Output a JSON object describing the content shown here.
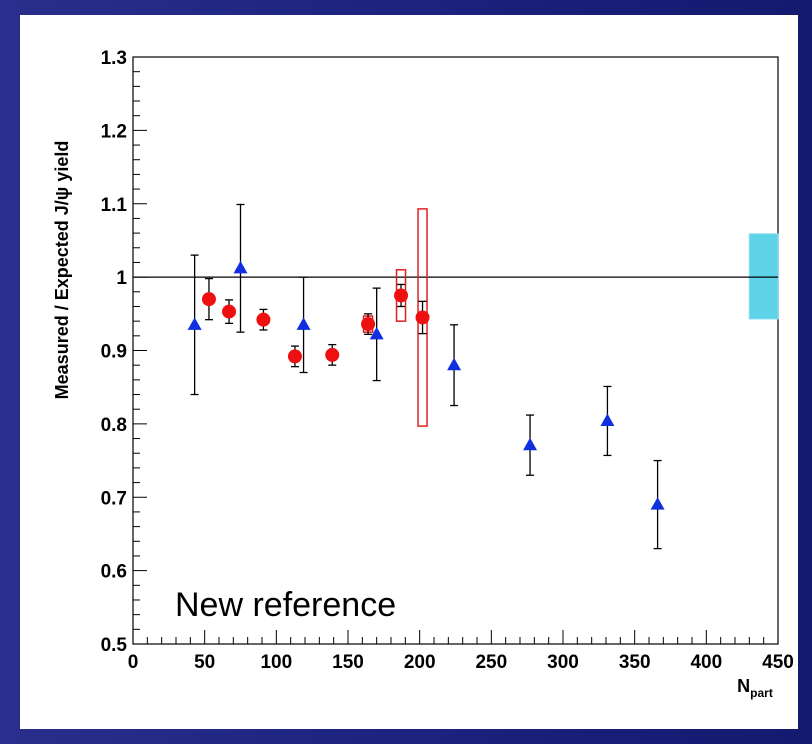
{
  "chart_data": {
    "type": "scatter",
    "title": "",
    "xlabel_main": "N",
    "xlabel_sub": "part",
    "ylabel": "Measured / Expected J/ψ yield",
    "xlim": [
      0,
      450
    ],
    "ylim": [
      0.5,
      1.3
    ],
    "x_ticks": [
      "0",
      "50",
      "100",
      "150",
      "200",
      "250",
      "300",
      "350",
      "400",
      "450"
    ],
    "y_ticks": [
      "0.5",
      "0.6",
      "0.7",
      "0.8",
      "0.9",
      "1",
      "1.1",
      "1.2",
      "1.3"
    ],
    "reference_line": 1.0,
    "annotation": "New reference",
    "colors": {
      "triangles": "#1030e0",
      "circles": "#ee1010",
      "syst_box": "#e02020",
      "global_box": "#5fd3e8"
    },
    "series": [
      {
        "marker": "triangle",
        "points": [
          {
            "x": 43,
            "y": 0.935,
            "err": 0.095
          },
          {
            "x": 75,
            "y": 1.012,
            "err": 0.087
          },
          {
            "x": 119,
            "y": 0.935,
            "err": 0.065
          },
          {
            "x": 170,
            "y": 0.922,
            "err": 0.063
          },
          {
            "x": 224,
            "y": 0.88,
            "err": 0.055
          },
          {
            "x": 277,
            "y": 0.771,
            "err": 0.041
          },
          {
            "x": 331,
            "y": 0.804,
            "err": 0.047
          },
          {
            "x": 366,
            "y": 0.69,
            "err": 0.06
          }
        ]
      },
      {
        "marker": "circle",
        "points": [
          {
            "x": 53,
            "y": 0.97,
            "err": 0.028
          },
          {
            "x": 67,
            "y": 0.953,
            "err": 0.016
          },
          {
            "x": 91,
            "y": 0.942,
            "err": 0.014
          },
          {
            "x": 113,
            "y": 0.892,
            "err": 0.014
          },
          {
            "x": 139,
            "y": 0.894,
            "err": 0.014
          },
          {
            "x": 164,
            "y": 0.936,
            "err": 0.014
          },
          {
            "x": 187,
            "y": 0.975,
            "err": 0.015
          },
          {
            "x": 202,
            "y": 0.945,
            "err": 0.022
          }
        ]
      }
    ],
    "syst_boxes": [
      {
        "x": 164,
        "ylo": 0.925,
        "yhi": 0.947
      },
      {
        "x": 187,
        "ylo": 0.94,
        "yhi": 1.01
      },
      {
        "x": 202,
        "ylo": 0.797,
        "yhi": 1.093
      }
    ],
    "global_box": {
      "xlo": 430,
      "xhi": 450,
      "ylo": 0.943,
      "yhi": 1.059
    }
  }
}
